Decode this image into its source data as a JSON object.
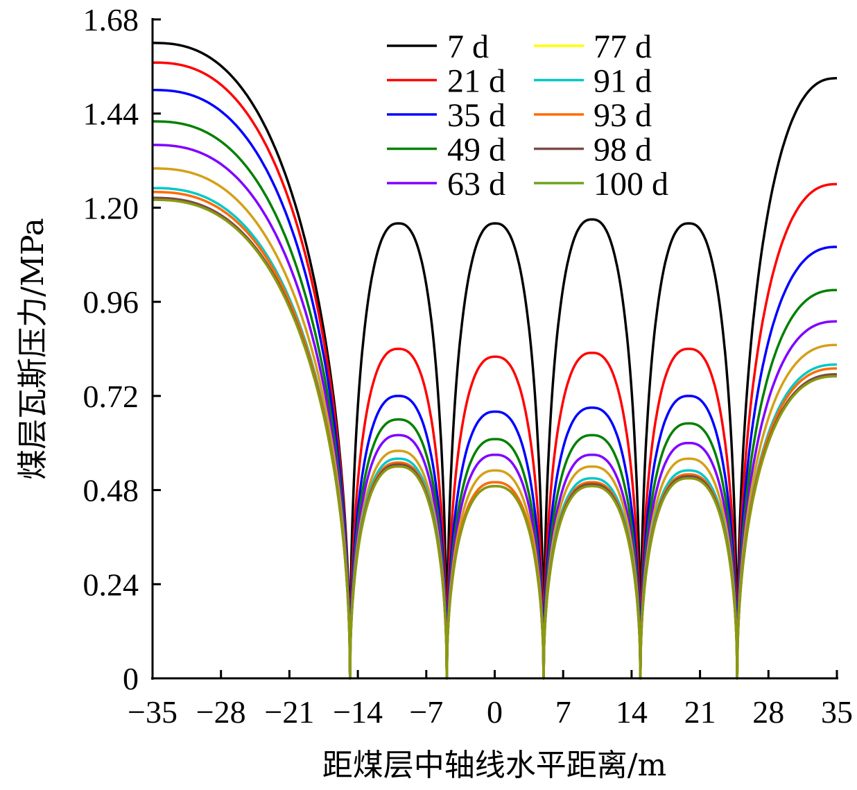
{
  "chart_data": {
    "type": "line",
    "title": "",
    "xlabel": "距煤层中轴线水平距离/m",
    "ylabel": "煤层瓦斯压力/MPa",
    "xlim": [
      -35,
      35
    ],
    "ylim": [
      0,
      1.68
    ],
    "xticks": [
      -35,
      -28,
      -21,
      -14,
      -7,
      0,
      7,
      14,
      21,
      28,
      35
    ],
    "xtick_labels": [
      "−35",
      "−28",
      "−21",
      "−14",
      "−7",
      "0",
      "7",
      "14",
      "21",
      "28",
      "35"
    ],
    "yticks": [
      0,
      0.24,
      0.48,
      0.72,
      0.96,
      1.2,
      1.44,
      1.68
    ],
    "ytick_labels": [
      "0",
      "0.24",
      "0.48",
      "0.72",
      "0.96",
      "1.20",
      "1.44",
      "1.68"
    ],
    "grid": false,
    "legend_position": "top-right",
    "zero_pressure_x": [
      -14.8,
      -4.9,
      5.0,
      14.9,
      24.8
    ],
    "series": [
      {
        "name": "7 d",
        "color": "#000000",
        "line_color": "#000000",
        "left_edge": 1.62,
        "peaks": [
          1.16,
          1.16,
          1.17,
          1.16
        ],
        "right_edge": 1.53
      },
      {
        "name": "21 d",
        "color": "#ff0000",
        "line_color": "#ff0000",
        "left_edge": 1.57,
        "peaks": [
          0.84,
          0.82,
          0.83,
          0.84
        ],
        "right_edge": 1.26
      },
      {
        "name": "35 d",
        "color": "#0000ff",
        "line_color": "#0000ff",
        "left_edge": 1.5,
        "peaks": [
          0.72,
          0.68,
          0.69,
          0.72
        ],
        "right_edge": 1.1
      },
      {
        "name": "49 d",
        "color": "#008000",
        "line_color": "#008000",
        "left_edge": 1.42,
        "peaks": [
          0.66,
          0.61,
          0.62,
          0.65
        ],
        "right_edge": 0.99
      },
      {
        "name": "63 d",
        "color": "#8000ff",
        "line_color": "#8000ff",
        "left_edge": 1.36,
        "peaks": [
          0.62,
          0.57,
          0.57,
          0.6
        ],
        "right_edge": 0.91
      },
      {
        "name": "77 d",
        "color": "#ffff00",
        "line_color": "#d4a017",
        "left_edge": 1.3,
        "peaks": [
          0.58,
          0.53,
          0.54,
          0.56
        ],
        "right_edge": 0.85
      },
      {
        "name": "91 d",
        "color": "#00c8c8",
        "line_color": "#00c8c8",
        "left_edge": 1.25,
        "peaks": [
          0.56,
          0.5,
          0.51,
          0.53
        ],
        "right_edge": 0.8
      },
      {
        "name": "93 d",
        "color": "#ff6a00",
        "line_color": "#ff6a00",
        "left_edge": 1.24,
        "peaks": [
          0.55,
          0.5,
          0.5,
          0.52
        ],
        "right_edge": 0.79
      },
      {
        "name": "98 d",
        "color": "#7a4a48",
        "line_color": "#7a4a48",
        "left_edge": 1.225,
        "peaks": [
          0.545,
          0.49,
          0.495,
          0.515
        ],
        "right_edge": 0.775
      },
      {
        "name": "100 d",
        "color": "#6aa31e",
        "line_color": "#8a9a10",
        "left_edge": 1.22,
        "peaks": [
          0.54,
          0.49,
          0.49,
          0.51
        ],
        "right_edge": 0.77
      }
    ]
  }
}
